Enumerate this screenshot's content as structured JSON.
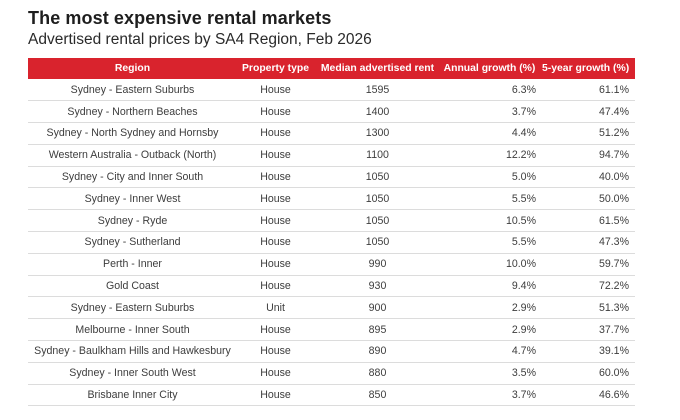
{
  "header": {
    "title": "The most expensive rental markets",
    "subtitle": "Advertised rental prices by SA4 Region, Feb 2026"
  },
  "table": {
    "columns": [
      "Region",
      "Property type",
      "Median advertised rent",
      "Annual growth (%)",
      "5-year growth (%)"
    ],
    "rows": [
      [
        "Sydney - Eastern Suburbs",
        "House",
        "1595",
        "6.3%",
        "61.1%"
      ],
      [
        "Sydney - Northern Beaches",
        "House",
        "1400",
        "3.7%",
        "47.4%"
      ],
      [
        "Sydney - North Sydney and Hornsby",
        "House",
        "1300",
        "4.4%",
        "51.2%"
      ],
      [
        "Western Australia - Outback (North)",
        "House",
        "1100",
        "12.2%",
        "94.7%"
      ],
      [
        "Sydney - City and Inner South",
        "House",
        "1050",
        "5.0%",
        "40.0%"
      ],
      [
        "Sydney - Inner West",
        "House",
        "1050",
        "5.5%",
        "50.0%"
      ],
      [
        "Sydney - Ryde",
        "House",
        "1050",
        "10.5%",
        "61.5%"
      ],
      [
        "Sydney - Sutherland",
        "House",
        "1050",
        "5.5%",
        "47.3%"
      ],
      [
        "Perth - Inner",
        "House",
        "990",
        "10.0%",
        "59.7%"
      ],
      [
        "Gold Coast",
        "House",
        "930",
        "9.4%",
        "72.2%"
      ],
      [
        "Sydney - Eastern Suburbs",
        "Unit",
        "900",
        "2.9%",
        "51.3%"
      ],
      [
        "Melbourne - Inner South",
        "House",
        "895",
        "2.9%",
        "37.7%"
      ],
      [
        "Sydney - Baulkham Hills and Hawkesbury",
        "House",
        "890",
        "4.7%",
        "39.1%"
      ],
      [
        "Sydney - Inner South West",
        "House",
        "880",
        "3.5%",
        "60.0%"
      ],
      [
        "Brisbane Inner City",
        "House",
        "850",
        "3.7%",
        "46.6%"
      ]
    ]
  },
  "colors": {
    "header_bg": "#d9232d",
    "header_text": "#ffffff",
    "row_divider": "#dcdcdc"
  }
}
